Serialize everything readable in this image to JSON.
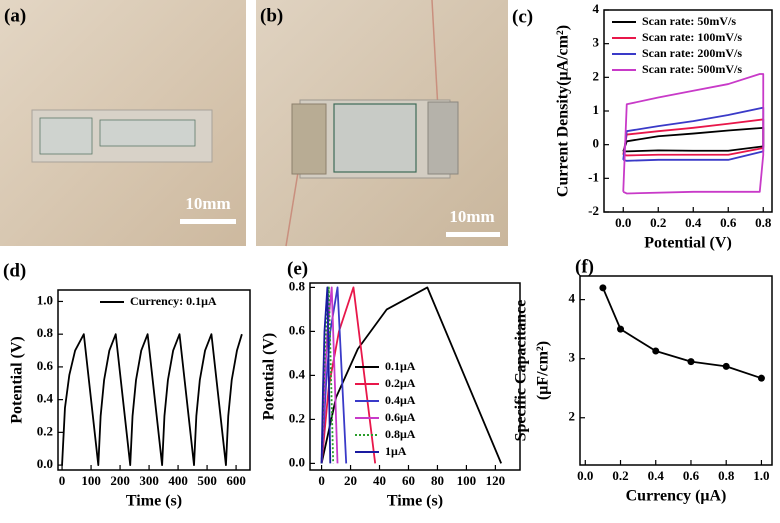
{
  "photos": [
    {
      "label": "(a)",
      "scale_bar": "10mm"
    },
    {
      "label": "(b)",
      "scale_bar": "10mm"
    }
  ],
  "chart_data": [
    {
      "type": "line",
      "panel_label": "(c)",
      "xlabel": "Potential (V)",
      "ylabel": "Current Density(μA/cm²)",
      "xlim": [
        -0.11,
        0.85
      ],
      "ylim": [
        -2,
        4
      ],
      "xticks": [
        {
          "value": 0,
          "label": "0.0"
        },
        0.2,
        0.4,
        0.6,
        0.8
      ],
      "yticks": [
        -2,
        -1,
        0,
        1,
        2,
        3,
        4
      ],
      "legend": "upper left",
      "series": [
        {
          "name": "Scan rate: 50mV/s",
          "color": "#000000",
          "x": [
            0,
            0.02,
            0.2,
            0.4,
            0.6,
            0.8,
            0.8,
            0.6,
            0.4,
            0.2,
            0.02,
            0
          ],
          "values": [
            -0.2,
            0.1,
            0.25,
            0.33,
            0.42,
            0.5,
            -0.05,
            -0.18,
            -0.18,
            -0.17,
            -0.2,
            -0.2
          ]
        },
        {
          "name": "Scan rate: 100mV/s",
          "color": "#e8174a",
          "x": [
            0,
            0.02,
            0.2,
            0.4,
            0.6,
            0.8,
            0.8,
            0.6,
            0.4,
            0.2,
            0.02,
            0
          ],
          "values": [
            -0.3,
            0.3,
            0.4,
            0.5,
            0.62,
            0.75,
            -0.1,
            -0.3,
            -0.3,
            -0.3,
            -0.32,
            -0.3
          ]
        },
        {
          "name": "Scan rate: 200mV/s",
          "color": "#3a3ac8",
          "x": [
            0,
            0.02,
            0.2,
            0.4,
            0.6,
            0.8,
            0.8,
            0.6,
            0.4,
            0.2,
            0.02,
            0
          ],
          "values": [
            -0.45,
            0.4,
            0.55,
            0.7,
            0.88,
            1.1,
            -0.2,
            -0.45,
            -0.45,
            -0.45,
            -0.48,
            -0.45
          ]
        },
        {
          "name": "Scan rate: 500mV/s",
          "color": "#c83ac8",
          "x": [
            0,
            0.02,
            0.2,
            0.4,
            0.6,
            0.78,
            0.8,
            0.8,
            0.78,
            0.4,
            0.02,
            0
          ],
          "values": [
            -1.4,
            1.2,
            1.4,
            1.6,
            1.8,
            2.1,
            2.1,
            -0.3,
            -1.4,
            -1.4,
            -1.45,
            -1.4
          ]
        }
      ]
    },
    {
      "type": "line",
      "panel_label": "(d)",
      "xlabel": "Time (s)",
      "ylabel": "Potential (V)",
      "xlim": [
        -14,
        648
      ],
      "ylim": [
        -0.03,
        1.07
      ],
      "xticks": [
        0,
        100,
        200,
        300,
        400,
        500,
        600
      ],
      "yticks": [
        {
          "value": 0,
          "label": "0.0"
        },
        0.2,
        0.4,
        0.6,
        0.8,
        {
          "value": 1,
          "label": "1.0"
        }
      ],
      "legend": "upper right",
      "series": [
        {
          "name": "Currency: 0.1μA",
          "color": "#000000",
          "x": [
            0,
            10,
            25,
            45,
            75,
            125,
            133,
            145,
            163,
            185,
            235,
            243,
            255,
            273,
            295,
            345,
            353,
            365,
            383,
            405,
            455,
            463,
            475,
            493,
            515,
            565,
            573,
            585,
            603,
            620
          ],
          "values": [
            0,
            0.35,
            0.55,
            0.7,
            0.8,
            0,
            0.3,
            0.52,
            0.7,
            0.8,
            0,
            0.3,
            0.52,
            0.7,
            0.8,
            0,
            0.3,
            0.52,
            0.7,
            0.8,
            0,
            0.3,
            0.52,
            0.7,
            0.8,
            0,
            0.3,
            0.52,
            0.7,
            0.8
          ]
        }
      ]
    },
    {
      "type": "line",
      "panel_label": "(e)",
      "xlabel": "Time (s)",
      "ylabel": "Potential (V)",
      "xlim": [
        -8,
        137
      ],
      "ylim": [
        -0.03,
        0.82
      ],
      "xticks": [
        0,
        20,
        40,
        60,
        80,
        100,
        120
      ],
      "yticks": [
        {
          "value": 0,
          "label": "0.0"
        },
        0.2,
        0.4,
        0.6,
        0.8
      ],
      "legend": "lower right",
      "series": [
        {
          "name": "0.1μA",
          "color": "#000000",
          "x": [
            0,
            10,
            25,
            45,
            73,
            124
          ],
          "values": [
            0,
            0.3,
            0.52,
            0.7,
            0.8,
            0
          ]
        },
        {
          "name": "0.2μA",
          "color": "#e8174a",
          "x": [
            0,
            5,
            12,
            22,
            37
          ],
          "values": [
            0,
            0.35,
            0.6,
            0.8,
            0
          ]
        },
        {
          "name": "0.4μA",
          "color": "#3a3ac8",
          "x": [
            0,
            3,
            6,
            11,
            17
          ],
          "values": [
            0,
            0.35,
            0.6,
            0.8,
            0
          ]
        },
        {
          "name": "0.6μA",
          "color": "#c83ac8",
          "x": [
            0,
            2,
            4,
            7,
            11
          ],
          "values": [
            0,
            0.35,
            0.6,
            0.8,
            0
          ]
        },
        {
          "name": "0.8μA",
          "color": "#2a9d2a",
          "linestyle": "dotted",
          "x": [
            0,
            1.5,
            3,
            5,
            8
          ],
          "values": [
            0,
            0.35,
            0.6,
            0.8,
            0
          ]
        },
        {
          "name": "1μA",
          "color": "#1a1aa0",
          "x": [
            0,
            1,
            2,
            4,
            6
          ],
          "values": [
            0,
            0.35,
            0.6,
            0.8,
            0
          ]
        }
      ]
    },
    {
      "type": "line",
      "panel_label": "(f)",
      "xlabel": "Currency (μA)",
      "ylabel": [
        "Specific Capacitance",
        "(μF/cm²)"
      ],
      "xlim": [
        -0.03,
        1.06
      ],
      "ylim": [
        1.2,
        4.4
      ],
      "xticks": [
        {
          "value": 0,
          "label": "0.0"
        },
        0.2,
        0.4,
        0.6,
        0.8,
        {
          "value": 1,
          "label": "1.0"
        }
      ],
      "yticks": [
        2,
        3,
        4
      ],
      "marker": "circle",
      "series": [
        {
          "color": "#000000",
          "x": [
            0.1,
            0.2,
            0.4,
            0.6,
            0.8,
            1.0
          ],
          "values": [
            4.2,
            3.5,
            3.13,
            2.95,
            2.87,
            2.67
          ]
        }
      ]
    }
  ]
}
